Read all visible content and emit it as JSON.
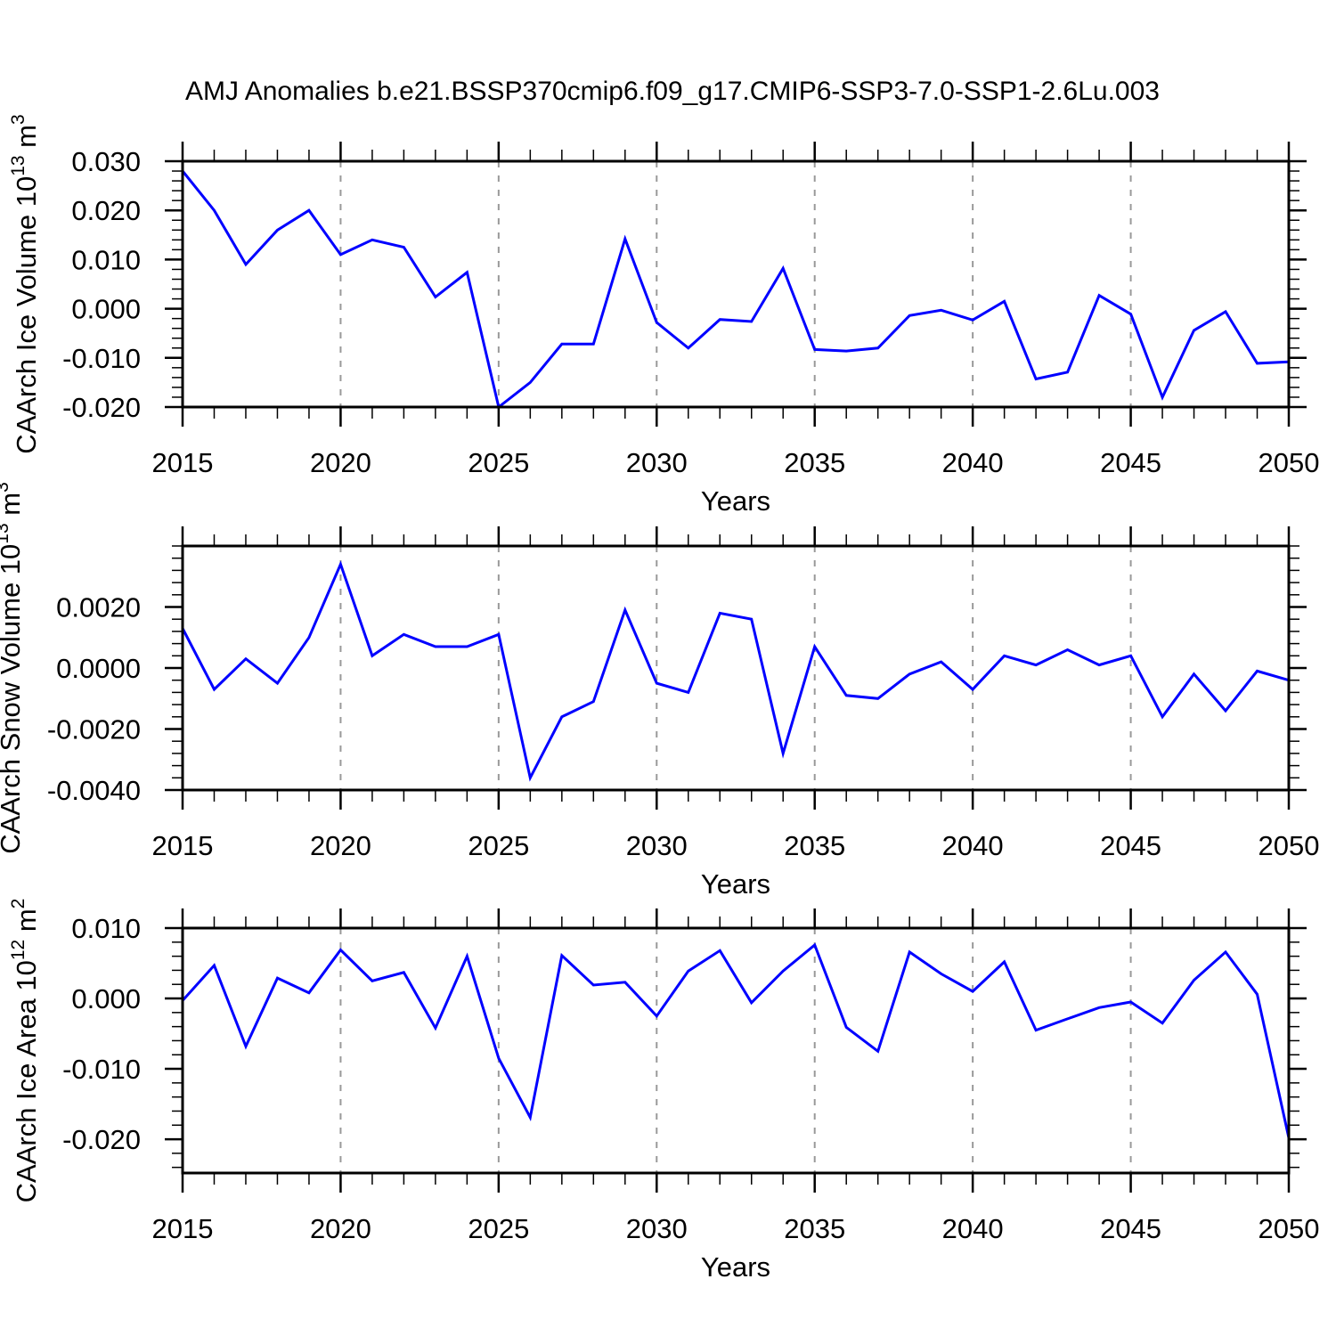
{
  "title": "AMJ Anomalies b.e21.BSSP370cmip6.f09_g17.CMIP6-SSP3-7.0-SSP1-2.6Lu.003",
  "colors": {
    "line": "#0000ff",
    "grid": "#999999",
    "axis": "#000000",
    "background": "#ffffff"
  },
  "x_axis": {
    "label": "Years",
    "years": [
      2015,
      2016,
      2017,
      2018,
      2019,
      2020,
      2021,
      2022,
      2023,
      2024,
      2025,
      2026,
      2027,
      2028,
      2029,
      2030,
      2031,
      2032,
      2033,
      2034,
      2035,
      2036,
      2037,
      2038,
      2039,
      2040,
      2041,
      2042,
      2043,
      2044,
      2045,
      2046,
      2047,
      2048,
      2049,
      2050
    ],
    "major_ticks": [
      2015,
      2020,
      2025,
      2030,
      2035,
      2040,
      2045,
      2050
    ],
    "tick_labels": [
      "2015",
      "2020",
      "2025",
      "2030",
      "2035",
      "2040",
      "2045",
      "2050"
    ],
    "gridline_years": [
      2020,
      2025,
      2030,
      2035,
      2040,
      2045
    ],
    "xlim": [
      2015,
      2050
    ]
  },
  "chart_data": [
    {
      "type": "line",
      "name": "ice-volume",
      "ylabel_segments": [
        {
          "t": "CAArch Ice Volume 10"
        },
        {
          "t": "13",
          "sup": true
        },
        {
          "t": " m"
        },
        {
          "t": "3",
          "sup": true
        }
      ],
      "ylim": [
        -0.02,
        0.03
      ],
      "ytick_vals": [
        0.03,
        0.02,
        0.01,
        0.0,
        -0.01,
        -0.02
      ],
      "ytick_labels": [
        "0.030",
        "0.020",
        "0.010",
        "0.000",
        "-0.010",
        "-0.020"
      ],
      "y_minor_step": 0.002,
      "grid": "x-dashed",
      "legend": "none",
      "values": [
        0.028,
        0.02,
        0.009,
        0.016,
        0.02,
        0.011,
        0.014,
        0.0125,
        0.0024,
        0.0074,
        -0.02,
        -0.015,
        -0.0072,
        -0.0072,
        0.0142,
        -0.0028,
        -0.008,
        -0.0022,
        -0.0026,
        0.0082,
        -0.0083,
        -0.0086,
        -0.008,
        -0.0014,
        -0.0003,
        -0.0023,
        0.0015,
        -0.0143,
        -0.0129,
        0.0027,
        -0.0011,
        -0.018,
        -0.0044,
        -0.0006,
        -0.0111,
        -0.0108
      ]
    },
    {
      "type": "line",
      "name": "snow-volume",
      "ylabel_segments": [
        {
          "t": "CAArch Snow Volume 10"
        },
        {
          "t": "13",
          "sup": true
        },
        {
          "t": " m"
        },
        {
          "t": "3",
          "sup": true
        }
      ],
      "ylim": [
        -0.004,
        0.004
      ],
      "ytick_vals": [
        0.002,
        0.0,
        -0.002,
        -0.004
      ],
      "ytick_labels": [
        "0.0020",
        "0.0000",
        "-0.0020",
        "-0.0040"
      ],
      "y_minor_step": 0.0004,
      "grid": "x-dashed",
      "legend": "none",
      "values": [
        0.0013,
        -0.0007,
        0.0003,
        -0.0005,
        0.001,
        0.0034,
        0.0004,
        0.0011,
        0.0007,
        0.0007,
        0.0011,
        -0.0036,
        -0.0016,
        -0.0011,
        0.0019,
        -0.0005,
        -0.0008,
        0.0018,
        0.0016,
        -0.0028,
        0.0007,
        -0.0009,
        -0.001,
        -0.0002,
        0.0002,
        -0.0007,
        0.0004,
        0.0001,
        0.0006,
        0.0001,
        0.0004,
        -0.0016,
        -0.0002,
        -0.0014,
        -0.0001,
        -0.0004
      ]
    },
    {
      "type": "line",
      "name": "ice-area",
      "ylabel_segments": [
        {
          "t": "CAArch Ice Area 10"
        },
        {
          "t": "12",
          "sup": true
        },
        {
          "t": " m"
        },
        {
          "t": "2",
          "sup": true
        }
      ],
      "ylim": [
        -0.0248,
        0.01
      ],
      "ytick_vals": [
        0.01,
        0.0,
        -0.01,
        -0.02
      ],
      "ytick_labels": [
        "0.010",
        "0.000",
        "-0.010",
        "-0.020"
      ],
      "y_minor_step": 0.002,
      "grid": "x-dashed",
      "legend": "none",
      "values": [
        -0.0003,
        0.0047,
        -0.0068,
        0.0029,
        0.0008,
        0.0069,
        0.0025,
        0.0037,
        -0.0042,
        0.006,
        -0.0085,
        -0.0169,
        0.0061,
        0.0019,
        0.0023,
        -0.0025,
        0.0039,
        0.0068,
        -0.0006,
        0.0039,
        0.0076,
        -0.0041,
        -0.0075,
        0.0066,
        0.0035,
        0.001,
        0.0052,
        -0.0045,
        -0.0029,
        -0.0013,
        -0.0005,
        -0.0035,
        0.0026,
        0.0066,
        0.0006,
        -0.0198
      ]
    }
  ]
}
